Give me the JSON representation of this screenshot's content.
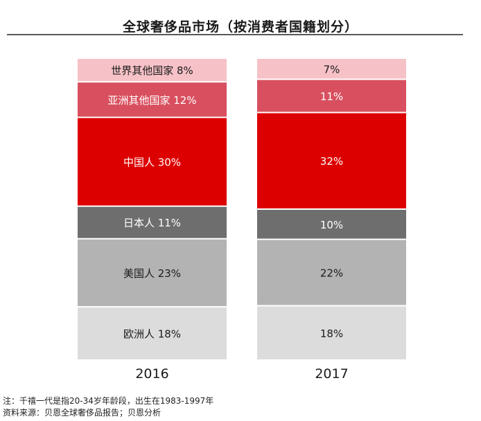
{
  "chart_data": {
    "type": "bar",
    "stacked": true,
    "normalized": true,
    "title": "全球奢侈品市场（按消费者国籍划分）",
    "categories": [
      "2016",
      "2017"
    ],
    "series": [
      {
        "name": "欧洲人",
        "values": [
          18,
          18
        ],
        "color": "#dcdcdc"
      },
      {
        "name": "美国人",
        "values": [
          23,
          22
        ],
        "color": "#b3b3b3"
      },
      {
        "name": "日本人",
        "values": [
          11,
          10
        ],
        "color": "#6e6e6e"
      },
      {
        "name": "中国人",
        "values": [
          30,
          32
        ],
        "color": "#dd0000"
      },
      {
        "name": "亚洲其他国家",
        "values": [
          12,
          11
        ],
        "color": "#d8505f"
      },
      {
        "name": "世界其他国家",
        "values": [
          8,
          7
        ],
        "color": "#f6c2c7"
      }
    ],
    "segment_labels": [
      [
        "欧洲人 18%",
        "美国人 23%",
        "日本人 11%",
        "中国人 30%",
        "亚洲其他国家 12%",
        "世界其他国家 8%"
      ],
      [
        "18%",
        "22%",
        "10%",
        "32%",
        "11%",
        "7%"
      ]
    ],
    "ylim": [
      0,
      100
    ],
    "xlabel": "",
    "ylabel": "",
    "grid": false,
    "legend": "none"
  },
  "footnotes": {
    "note": "注：千禧一代是指20-34岁年龄段，出生在1983-1997年",
    "source": "资料来源：贝恩全球奢侈品报告；贝恩分析"
  }
}
